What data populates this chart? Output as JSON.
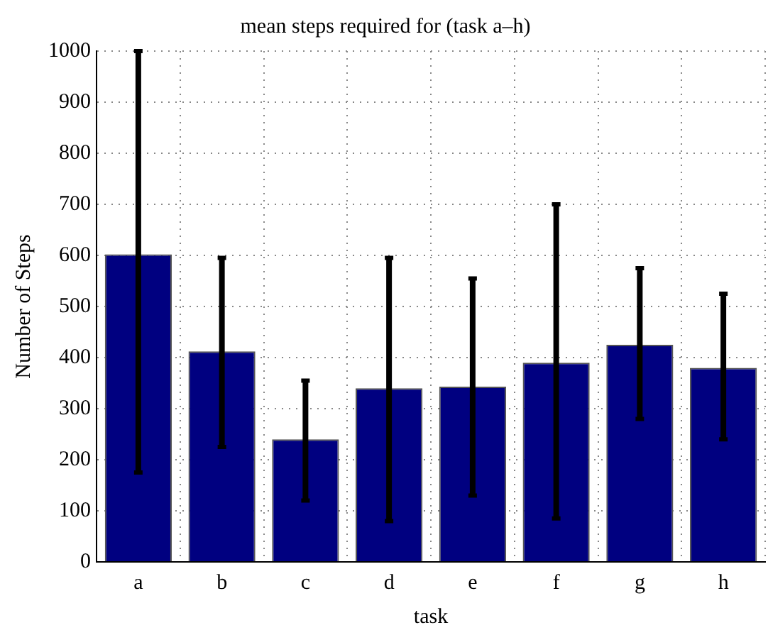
{
  "chart_data": {
    "type": "bar",
    "title": "mean steps required for (task a–h)",
    "xlabel": "task",
    "ylabel": "Number of Steps",
    "categories": [
      "a",
      "b",
      "c",
      "d",
      "e",
      "f",
      "g",
      "h"
    ],
    "values": [
      602,
      412,
      240,
      340,
      343,
      390,
      425,
      380
    ],
    "errors": [
      [
        175,
        1000
      ],
      [
        225,
        595
      ],
      [
        120,
        355
      ],
      [
        80,
        595
      ],
      [
        130,
        555
      ],
      [
        85,
        700
      ],
      [
        280,
        575
      ],
      [
        240,
        525
      ]
    ],
    "color": "#000080",
    "ylim": [
      0,
      1000
    ],
    "yticks": [
      0,
      100,
      200,
      300,
      400,
      500,
      600,
      700,
      800,
      900,
      1000
    ],
    "grid": true,
    "legend": false
  }
}
